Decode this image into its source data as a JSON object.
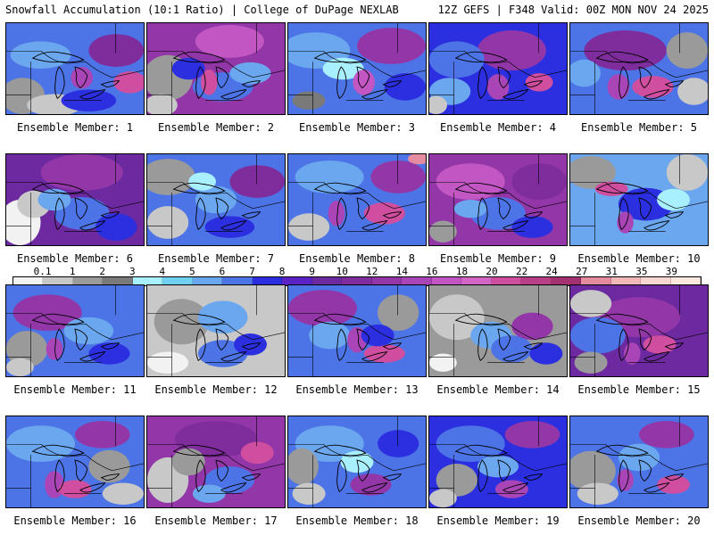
{
  "header": {
    "left": "Snowfall Accumulation (10:1 Ratio) | College of DuPage NEXLAB",
    "right": "12Z GEFS | F348 Valid: 00Z MON NOV 24 2025"
  },
  "members": [
    "Ensemble Member: 1",
    "Ensemble Member: 2",
    "Ensemble Member: 3",
    "Ensemble Member: 4",
    "Ensemble Member: 5",
    "Ensemble Member: 6",
    "Ensemble Member: 7",
    "Ensemble Member: 8",
    "Ensemble Member: 9",
    "Ensemble Member: 10",
    "Ensemble Member: 11",
    "Ensemble Member: 12",
    "Ensemble Member: 13",
    "Ensemble Member: 14",
    "Ensemble Member: 15",
    "Ensemble Member: 16",
    "Ensemble Member: 17",
    "Ensemble Member: 18",
    "Ensemble Member: 19",
    "Ensemble Member: 20"
  ],
  "scale": {
    "ticks": [
      "0.1",
      "1",
      "2",
      "3",
      "4",
      "5",
      "6",
      "7",
      "8",
      "9",
      "10",
      "12",
      "14",
      "16",
      "18",
      "20",
      "22",
      "24",
      "27",
      "31",
      "35",
      "39"
    ],
    "colors": [
      "#f2f2f2",
      "#c8c8c8",
      "#9a9a9a",
      "#7a7a7a",
      "#a9f0ff",
      "#6fd0f2",
      "#6ba7ee",
      "#4d74e6",
      "#2b2fe0",
      "#5b23c6",
      "#6d2aa0",
      "#7f2d9c",
      "#9337a8",
      "#a945b6",
      "#c257c4",
      "#d366c4",
      "#cf4e9f",
      "#b83e86",
      "#a33070",
      "#e58ba0",
      "#f2b7b7",
      "#f7d7cf",
      "#fbe9de"
    ]
  },
  "maps": [
    {
      "bg": "#4d74e6",
      "blobs": [
        [
          "#6ba7ee",
          0.25,
          0.35,
          0.22,
          0.15
        ],
        [
          "#9a9a9a",
          0.12,
          0.8,
          0.16,
          0.2
        ],
        [
          "#c8c8c8",
          0.35,
          0.9,
          0.2,
          0.12
        ],
        [
          "#7f2d9c",
          0.8,
          0.3,
          0.2,
          0.18
        ],
        [
          "#a945b6",
          0.55,
          0.6,
          0.08,
          0.12
        ],
        [
          "#cf4e9f",
          0.9,
          0.65,
          0.12,
          0.12
        ],
        [
          "#2b2fe0",
          0.6,
          0.85,
          0.2,
          0.12
        ]
      ]
    },
    {
      "bg": "#9337a8",
      "blobs": [
        [
          "#c257c4",
          0.6,
          0.2,
          0.25,
          0.18
        ],
        [
          "#9a9a9a",
          0.15,
          0.6,
          0.18,
          0.25
        ],
        [
          "#c8c8c8",
          0.1,
          0.9,
          0.12,
          0.12
        ],
        [
          "#4d74e6",
          0.55,
          0.7,
          0.22,
          0.16
        ],
        [
          "#6ba7ee",
          0.75,
          0.55,
          0.15,
          0.12
        ],
        [
          "#2b2fe0",
          0.3,
          0.5,
          0.12,
          0.12
        ],
        [
          "#cf4e9f",
          0.45,
          0.65,
          0.06,
          0.14
        ]
      ]
    },
    {
      "bg": "#4d74e6",
      "blobs": [
        [
          "#6ba7ee",
          0.2,
          0.3,
          0.25,
          0.2
        ],
        [
          "#9337a8",
          0.75,
          0.25,
          0.25,
          0.2
        ],
        [
          "#a9f0ff",
          0.4,
          0.5,
          0.15,
          0.12
        ],
        [
          "#c257c4",
          0.55,
          0.65,
          0.08,
          0.14
        ],
        [
          "#2b2fe0",
          0.85,
          0.7,
          0.15,
          0.15
        ],
        [
          "#7a7a7a",
          0.15,
          0.85,
          0.12,
          0.1
        ]
      ]
    },
    {
      "bg": "#2b2fe0",
      "blobs": [
        [
          "#9337a8",
          0.6,
          0.3,
          0.25,
          0.22
        ],
        [
          "#4d74e6",
          0.2,
          0.4,
          0.2,
          0.2
        ],
        [
          "#6ba7ee",
          0.15,
          0.75,
          0.15,
          0.15
        ],
        [
          "#a945b6",
          0.5,
          0.7,
          0.08,
          0.14
        ],
        [
          "#cf4e9f",
          0.8,
          0.65,
          0.1,
          0.1
        ],
        [
          "#c8c8c8",
          0.05,
          0.9,
          0.08,
          0.1
        ]
      ]
    },
    {
      "bg": "#4d74e6",
      "blobs": [
        [
          "#7f2d9c",
          0.4,
          0.3,
          0.3,
          0.22
        ],
        [
          "#9a9a9a",
          0.85,
          0.3,
          0.15,
          0.2
        ],
        [
          "#c8c8c8",
          0.9,
          0.75,
          0.12,
          0.15
        ],
        [
          "#a945b6",
          0.35,
          0.7,
          0.08,
          0.14
        ],
        [
          "#cf4e9f",
          0.6,
          0.7,
          0.15,
          0.12
        ],
        [
          "#6ba7ee",
          0.1,
          0.55,
          0.12,
          0.15
        ]
      ]
    },
    {
      "bg": "#6d2aa0",
      "blobs": [
        [
          "#9337a8",
          0.55,
          0.2,
          0.3,
          0.2
        ],
        [
          "#f2f2f2",
          0.1,
          0.75,
          0.15,
          0.25
        ],
        [
          "#c8c8c8",
          0.2,
          0.55,
          0.12,
          0.15
        ],
        [
          "#4d74e6",
          0.55,
          0.65,
          0.2,
          0.18
        ],
        [
          "#6ba7ee",
          0.35,
          0.5,
          0.12,
          0.12
        ],
        [
          "#2b2fe0",
          0.8,
          0.8,
          0.15,
          0.15
        ]
      ]
    },
    {
      "bg": "#4d74e6",
      "blobs": [
        [
          "#9a9a9a",
          0.15,
          0.25,
          0.2,
          0.2
        ],
        [
          "#c8c8c8",
          0.15,
          0.75,
          0.15,
          0.18
        ],
        [
          "#7f2d9c",
          0.8,
          0.3,
          0.2,
          0.18
        ],
        [
          "#6ba7ee",
          0.5,
          0.5,
          0.15,
          0.15
        ],
        [
          "#2b2fe0",
          0.6,
          0.8,
          0.18,
          0.12
        ],
        [
          "#a9f0ff",
          0.4,
          0.3,
          0.1,
          0.1
        ]
      ]
    },
    {
      "bg": "#4d74e6",
      "blobs": [
        [
          "#6ba7ee",
          0.3,
          0.25,
          0.25,
          0.18
        ],
        [
          "#9337a8",
          0.8,
          0.25,
          0.2,
          0.18
        ],
        [
          "#c8c8c8",
          0.15,
          0.8,
          0.15,
          0.15
        ],
        [
          "#cf4e9f",
          0.7,
          0.65,
          0.15,
          0.12
        ],
        [
          "#a945b6",
          0.35,
          0.65,
          0.06,
          0.14
        ],
        [
          "#e58ba0",
          0.95,
          0.05,
          0.08,
          0.06
        ]
      ]
    },
    {
      "bg": "#9337a8",
      "blobs": [
        [
          "#c257c4",
          0.3,
          0.3,
          0.25,
          0.2
        ],
        [
          "#7f2d9c",
          0.8,
          0.3,
          0.2,
          0.2
        ],
        [
          "#4d74e6",
          0.5,
          0.65,
          0.2,
          0.18
        ],
        [
          "#6ba7ee",
          0.3,
          0.6,
          0.12,
          0.1
        ],
        [
          "#9a9a9a",
          0.1,
          0.85,
          0.1,
          0.12
        ],
        [
          "#2b2fe0",
          0.75,
          0.8,
          0.15,
          0.12
        ]
      ]
    },
    {
      "bg": "#6ba7ee",
      "blobs": [
        [
          "#9a9a9a",
          0.15,
          0.2,
          0.18,
          0.18
        ],
        [
          "#c8c8c8",
          0.85,
          0.2,
          0.15,
          0.2
        ],
        [
          "#cf4e9f",
          0.3,
          0.38,
          0.12,
          0.08
        ],
        [
          "#2b2fe0",
          0.55,
          0.55,
          0.2,
          0.18
        ],
        [
          "#a945b6",
          0.4,
          0.75,
          0.06,
          0.12
        ],
        [
          "#a9f0ff",
          0.75,
          0.5,
          0.12,
          0.12
        ]
      ]
    },
    {
      "bg": "#4d74e6",
      "blobs": [
        [
          "#9337a8",
          0.3,
          0.3,
          0.25,
          0.2
        ],
        [
          "#9a9a9a",
          0.15,
          0.7,
          0.15,
          0.2
        ],
        [
          "#c8c8c8",
          0.1,
          0.9,
          0.1,
          0.1
        ],
        [
          "#6ba7ee",
          0.6,
          0.5,
          0.18,
          0.15
        ],
        [
          "#a945b6",
          0.35,
          0.7,
          0.06,
          0.12
        ],
        [
          "#2b2fe0",
          0.75,
          0.75,
          0.15,
          0.12
        ]
      ]
    },
    {
      "bg": "#c8c8c8",
      "blobs": [
        [
          "#9a9a9a",
          0.25,
          0.4,
          0.2,
          0.25
        ],
        [
          "#6ba7ee",
          0.55,
          0.35,
          0.18,
          0.18
        ],
        [
          "#4d74e6",
          0.55,
          0.75,
          0.18,
          0.15
        ],
        [
          "#f2f2f2",
          0.15,
          0.85,
          0.15,
          0.12
        ],
        [
          "#2b2fe0",
          0.75,
          0.65,
          0.12,
          0.12
        ]
      ]
    },
    {
      "bg": "#4d74e6",
      "blobs": [
        [
          "#9337a8",
          0.25,
          0.25,
          0.25,
          0.2
        ],
        [
          "#6ba7ee",
          0.3,
          0.55,
          0.15,
          0.15
        ],
        [
          "#a945b6",
          0.5,
          0.6,
          0.07,
          0.14
        ],
        [
          "#cf4e9f",
          0.7,
          0.75,
          0.15,
          0.1
        ],
        [
          "#9a9a9a",
          0.8,
          0.3,
          0.15,
          0.2
        ],
        [
          "#2b2fe0",
          0.65,
          0.55,
          0.12,
          0.12
        ]
      ]
    },
    {
      "bg": "#9a9a9a",
      "blobs": [
        [
          "#c8c8c8",
          0.2,
          0.35,
          0.2,
          0.25
        ],
        [
          "#6ba7ee",
          0.45,
          0.55,
          0.15,
          0.15
        ],
        [
          "#4d74e6",
          0.6,
          0.7,
          0.15,
          0.15
        ],
        [
          "#9337a8",
          0.75,
          0.45,
          0.15,
          0.15
        ],
        [
          "#2b2fe0",
          0.85,
          0.75,
          0.12,
          0.12
        ],
        [
          "#f2f2f2",
          0.1,
          0.85,
          0.1,
          0.1
        ]
      ]
    },
    {
      "bg": "#6d2aa0",
      "blobs": [
        [
          "#9337a8",
          0.5,
          0.35,
          0.3,
          0.22
        ],
        [
          "#4d74e6",
          0.2,
          0.55,
          0.2,
          0.2
        ],
        [
          "#c8c8c8",
          0.15,
          0.2,
          0.15,
          0.15
        ],
        [
          "#9a9a9a",
          0.15,
          0.85,
          0.12,
          0.12
        ],
        [
          "#cf4e9f",
          0.65,
          0.65,
          0.12,
          0.1
        ],
        [
          "#a945b6",
          0.45,
          0.75,
          0.06,
          0.12
        ]
      ]
    },
    {
      "bg": "#4d74e6",
      "blobs": [
        [
          "#6ba7ee",
          0.25,
          0.3,
          0.25,
          0.2
        ],
        [
          "#9337a8",
          0.7,
          0.2,
          0.2,
          0.15
        ],
        [
          "#a945b6",
          0.35,
          0.75,
          0.07,
          0.15
        ],
        [
          "#9a9a9a",
          0.75,
          0.55,
          0.15,
          0.18
        ],
        [
          "#c8c8c8",
          0.85,
          0.85,
          0.15,
          0.12
        ],
        [
          "#cf4e9f",
          0.5,
          0.8,
          0.12,
          0.1
        ]
      ]
    },
    {
      "bg": "#9337a8",
      "blobs": [
        [
          "#7f2d9c",
          0.5,
          0.25,
          0.3,
          0.2
        ],
        [
          "#c8c8c8",
          0.15,
          0.7,
          0.15,
          0.25
        ],
        [
          "#9a9a9a",
          0.3,
          0.5,
          0.12,
          0.15
        ],
        [
          "#4d74e6",
          0.6,
          0.7,
          0.18,
          0.15
        ],
        [
          "#cf4e9f",
          0.8,
          0.4,
          0.12,
          0.12
        ],
        [
          "#6ba7ee",
          0.45,
          0.85,
          0.12,
          0.1
        ]
      ]
    },
    {
      "bg": "#4d74e6",
      "blobs": [
        [
          "#6ba7ee",
          0.3,
          0.3,
          0.25,
          0.2
        ],
        [
          "#9a9a9a",
          0.1,
          0.55,
          0.12,
          0.2
        ],
        [
          "#c8c8c8",
          0.15,
          0.85,
          0.12,
          0.12
        ],
        [
          "#a9f0ff",
          0.5,
          0.5,
          0.12,
          0.12
        ],
        [
          "#9337a8",
          0.6,
          0.75,
          0.15,
          0.12
        ],
        [
          "#2b2fe0",
          0.8,
          0.3,
          0.15,
          0.15
        ]
      ]
    },
    {
      "bg": "#2b2fe0",
      "blobs": [
        [
          "#4d74e6",
          0.3,
          0.3,
          0.25,
          0.2
        ],
        [
          "#9337a8",
          0.75,
          0.2,
          0.2,
          0.15
        ],
        [
          "#9a9a9a",
          0.2,
          0.7,
          0.15,
          0.18
        ],
        [
          "#c8c8c8",
          0.1,
          0.9,
          0.1,
          0.1
        ],
        [
          "#6ba7ee",
          0.5,
          0.55,
          0.15,
          0.12
        ],
        [
          "#a945b6",
          0.6,
          0.8,
          0.12,
          0.1
        ]
      ]
    },
    {
      "bg": "#4d74e6",
      "blobs": [
        [
          "#9a9a9a",
          0.15,
          0.6,
          0.18,
          0.22
        ],
        [
          "#c8c8c8",
          0.2,
          0.85,
          0.15,
          0.12
        ],
        [
          "#9337a8",
          0.7,
          0.2,
          0.2,
          0.15
        ],
        [
          "#6ba7ee",
          0.5,
          0.45,
          0.15,
          0.15
        ],
        [
          "#cf4e9f",
          0.75,
          0.75,
          0.12,
          0.1
        ],
        [
          "#a945b6",
          0.4,
          0.7,
          0.06,
          0.12
        ]
      ]
    }
  ]
}
